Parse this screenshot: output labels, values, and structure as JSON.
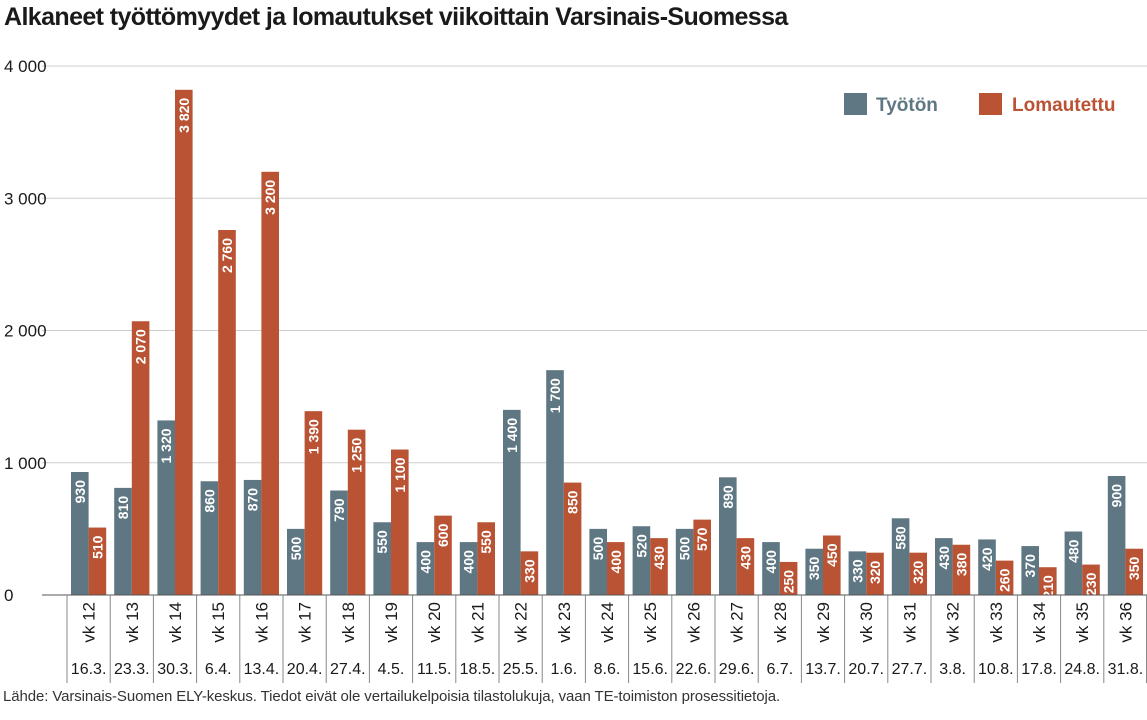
{
  "chart_data": {
    "type": "bar",
    "title": "Alkaneet työttömyydet ja lomautukset viikoittain Varsinais-Suomessa",
    "source": "Lähde: Varsinais-Suomen ELY-keskus. Tiedot eivät ole vertailukelpoisia tilastolukuja, vaan TE-toimiston prosessitietoja.",
    "categories": [
      "vk 12",
      "vk 13",
      "vk 14",
      "vk 15",
      "vk 16",
      "vk 17",
      "vk 18",
      "vk 19",
      "vk 20",
      "vk 21",
      "vk 22",
      "vk 23",
      "vk 24",
      "vk 25",
      "vk 26",
      "vk 27",
      "vk 28",
      "vk 29",
      "vk 30",
      "vk 31",
      "vk 32",
      "vk 33",
      "vk 34",
      "vk 35",
      "vk 36"
    ],
    "dates": [
      "16.3.",
      "23.3.",
      "30.3.",
      "6.4.",
      "13.4.",
      "20.4.",
      "27.4.",
      "4.5.",
      "11.5.",
      "18.5.",
      "25.5.",
      "1.6.",
      "8.6.",
      "15.6.",
      "22.6.",
      "29.6.",
      "6.7.",
      "13.7.",
      "20.7.",
      "27.7.",
      "3.8.",
      "10.8.",
      "17.8.",
      "24.8.",
      "31.8."
    ],
    "series": [
      {
        "name": "Työtön",
        "color": "#5e7782",
        "values": [
          930,
          810,
          1320,
          860,
          870,
          500,
          790,
          550,
          400,
          400,
          1400,
          1700,
          500,
          520,
          500,
          890,
          400,
          350,
          330,
          580,
          430,
          420,
          370,
          480,
          900
        ],
        "labels": [
          "930",
          "810",
          "1 320",
          "860",
          "870",
          "500",
          "790",
          "550",
          "400",
          "400",
          "1 400",
          "1 700",
          "500",
          "520",
          "500",
          "890",
          "400",
          "350",
          "330",
          "580",
          "430",
          "420",
          "370",
          "480",
          "900"
        ]
      },
      {
        "name": "Lomautettu",
        "color": "#b95333",
        "values": [
          510,
          2070,
          3820,
          2760,
          3200,
          1390,
          1250,
          1100,
          600,
          550,
          330,
          850,
          400,
          430,
          570,
          430,
          250,
          450,
          320,
          320,
          380,
          260,
          210,
          230,
          350
        ],
        "labels": [
          "510",
          "2 070",
          "3 820",
          "2 760",
          "3 200",
          "1 390",
          "1 250",
          "1 100",
          "600",
          "550",
          "330",
          "850",
          "400",
          "430",
          "570",
          "430",
          "250",
          "450",
          "320",
          "320",
          "380",
          "260",
          "210",
          "230",
          "350"
        ]
      }
    ],
    "ylim": [
      0,
      4000
    ],
    "yticks": [
      0,
      1000,
      2000,
      3000,
      4000
    ],
    "ytick_labels": [
      "0",
      "1 000",
      "2 000",
      "3 000",
      "4 000"
    ],
    "legend_position": "top-right",
    "grid": true
  }
}
